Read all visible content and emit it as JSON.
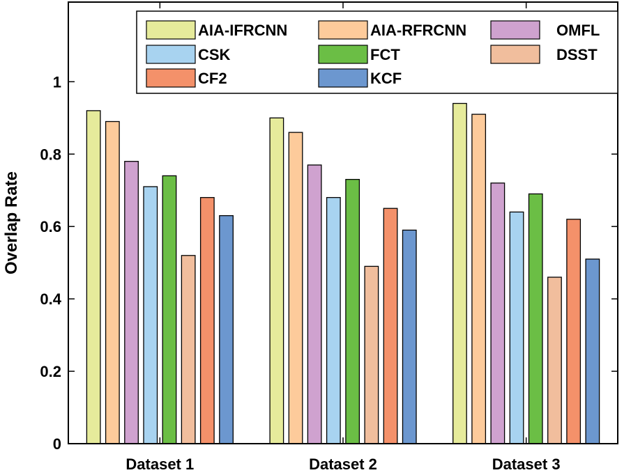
{
  "chart_data": {
    "type": "bar",
    "categories": [
      "Dataset 1",
      "Dataset 2",
      "Dataset 3"
    ],
    "ylabel": "Overlap Rate",
    "xlabel": "",
    "ylim": [
      0,
      1.0
    ],
    "yticks": [
      0,
      0.2,
      0.4,
      0.6,
      0.8,
      1
    ],
    "grid": false,
    "legend_position": "top",
    "series": [
      {
        "name": "AIA-IFRCNN",
        "color": "#E6EB9B",
        "values": [
          0.92,
          0.9,
          0.94
        ]
      },
      {
        "name": "AIA-RFRCNN",
        "color": "#FDCB9B",
        "values": [
          0.89,
          0.86,
          0.91
        ]
      },
      {
        "name": "OMFL",
        "color": "#CFA2CF",
        "values": [
          0.78,
          0.77,
          0.72
        ]
      },
      {
        "name": "CSK",
        "color": "#A8D3F0",
        "values": [
          0.71,
          0.68,
          0.64
        ]
      },
      {
        "name": "FCT",
        "color": "#6BBE45",
        "values": [
          0.74,
          0.73,
          0.69
        ]
      },
      {
        "name": "DSST",
        "color": "#F1BE9D",
        "values": [
          0.52,
          0.49,
          0.46
        ]
      },
      {
        "name": "CF2",
        "color": "#F4916A",
        "values": [
          0.68,
          0.65,
          0.62
        ]
      },
      {
        "name": "KCF",
        "color": "#6C97CF",
        "values": [
          0.63,
          0.59,
          0.51
        ]
      }
    ]
  }
}
